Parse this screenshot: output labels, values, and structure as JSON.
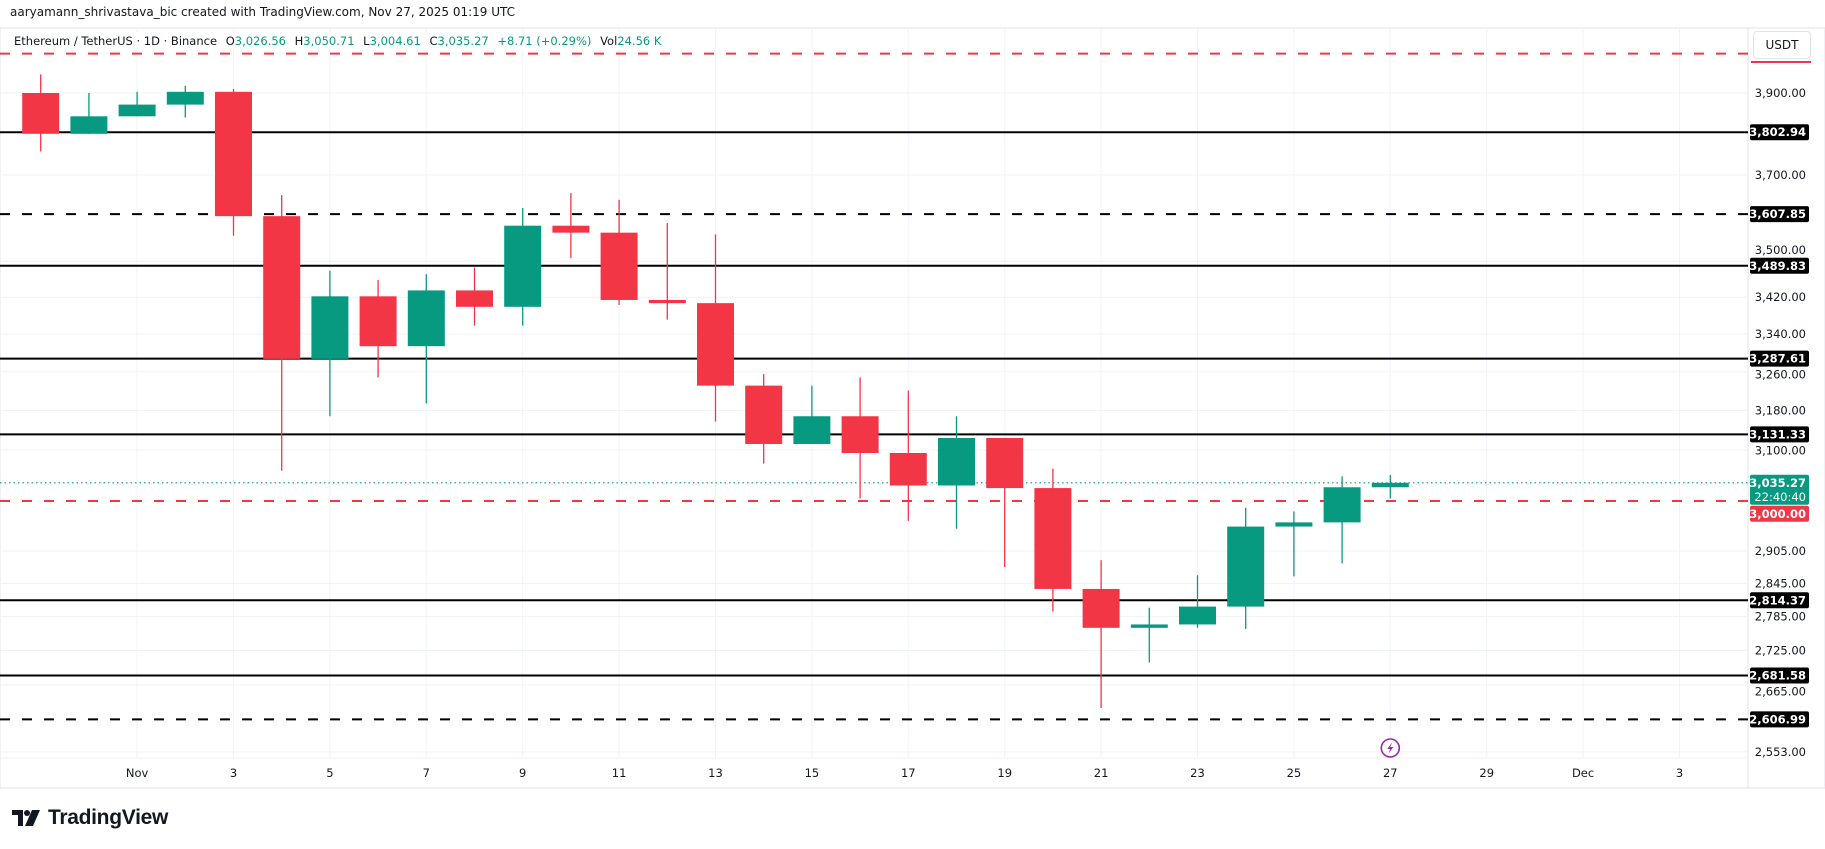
{
  "header": {
    "credit": "aaryamann_shrivastava_bic created with TradingView.com, Nov 27, 2025 01:19 UTC"
  },
  "legend": {
    "symbol": "Ethereum / TetherUS · 1D · Binance",
    "open_label": "O",
    "open": "3,026.56",
    "high_label": "H",
    "high": "3,050.71",
    "low_label": "L",
    "low": "3,004.61",
    "close_label": "C",
    "close": "3,035.27",
    "change": "+8.71 (+0.29%)",
    "vol_label": "Vol",
    "vol": "24.56 K"
  },
  "price_axis": {
    "currency": "USDT"
  },
  "branding": {
    "logo_text": "TradingView"
  },
  "colors": {
    "up": "#089981",
    "down": "#F23645",
    "level": "#000000",
    "accent": "#F23645",
    "event_icon": "#9C27B0"
  },
  "chart_data": {
    "type": "candlestick",
    "title": "",
    "y_scale": "log",
    "ylim": [
      2520,
      4060
    ],
    "grid": true,
    "candles": [
      {
        "date": "2025-10-30",
        "o": 3900,
        "h": 3947,
        "l": 3756,
        "c": 3799
      },
      {
        "date": "2025-10-31",
        "o": 3799,
        "h": 3900,
        "l": 3799,
        "c": 3842
      },
      {
        "date": "2025-11-01",
        "o": 3842,
        "h": 3903,
        "l": 3842,
        "c": 3871
      },
      {
        "date": "2025-11-02",
        "o": 3871,
        "h": 3918,
        "l": 3839,
        "c": 3903
      },
      {
        "date": "2025-11-03",
        "o": 3903,
        "h": 3910,
        "l": 3558,
        "c": 3603
      },
      {
        "date": "2025-11-04",
        "o": 3603,
        "h": 3652,
        "l": 3059,
        "c": 3287
      },
      {
        "date": "2025-11-05",
        "o": 3287,
        "h": 3479,
        "l": 3168,
        "c": 3422
      },
      {
        "date": "2025-11-06",
        "o": 3422,
        "h": 3458,
        "l": 3248,
        "c": 3314
      },
      {
        "date": "2025-11-07",
        "o": 3314,
        "h": 3471,
        "l": 3194,
        "c": 3435
      },
      {
        "date": "2025-11-08",
        "o": 3435,
        "h": 3486,
        "l": 3358,
        "c": 3399
      },
      {
        "date": "2025-11-09",
        "o": 3399,
        "h": 3622,
        "l": 3358,
        "c": 3581
      },
      {
        "date": "2025-11-10",
        "o": 3581,
        "h": 3657,
        "l": 3507,
        "c": 3565
      },
      {
        "date": "2025-11-11",
        "o": 3565,
        "h": 3641,
        "l": 3403,
        "c": 3414
      },
      {
        "date": "2025-11-12",
        "o": 3414,
        "h": 3587,
        "l": 3371,
        "c": 3407
      },
      {
        "date": "2025-11-13",
        "o": 3407,
        "h": 3561,
        "l": 3157,
        "c": 3231
      },
      {
        "date": "2025-11-14",
        "o": 3231,
        "h": 3255,
        "l": 3073,
        "c": 3112
      },
      {
        "date": "2025-11-15",
        "o": 3112,
        "h": 3231,
        "l": 3112,
        "c": 3168
      },
      {
        "date": "2025-11-16",
        "o": 3168,
        "h": 3248,
        "l": 3005,
        "c": 3094
      },
      {
        "date": "2025-11-17",
        "o": 3094,
        "h": 3221,
        "l": 2962,
        "c": 3030
      },
      {
        "date": "2025-11-18",
        "o": 3030,
        "h": 3168,
        "l": 2947,
        "c": 3124
      },
      {
        "date": "2025-11-19",
        "o": 3124,
        "h": 3124,
        "l": 2875,
        "c": 3025
      },
      {
        "date": "2025-11-20",
        "o": 3025,
        "h": 3063,
        "l": 2794,
        "c": 2835
      },
      {
        "date": "2025-11-21",
        "o": 2835,
        "h": 2888,
        "l": 2626,
        "c": 2765
      },
      {
        "date": "2025-11-22",
        "o": 2765,
        "h": 2801,
        "l": 2704,
        "c": 2771
      },
      {
        "date": "2025-11-23",
        "o": 2771,
        "h": 2860,
        "l": 2765,
        "c": 2803
      },
      {
        "date": "2025-11-24",
        "o": 2803,
        "h": 2987,
        "l": 2763,
        "c": 2951
      },
      {
        "date": "2025-11-25",
        "o": 2951,
        "h": 2980,
        "l": 2858,
        "c": 2959
      },
      {
        "date": "2025-11-26",
        "o": 2959,
        "h": 3048,
        "l": 2882,
        "c": 3026.56
      },
      {
        "date": "2025-11-27",
        "o": 3026.56,
        "h": 3050.71,
        "l": 3004.61,
        "c": 3035.27
      }
    ],
    "y_ticks": [
      "3,900.00",
      "3,700.00",
      "3,500.00",
      "3,420.00",
      "3,340.00",
      "3,260.00",
      "3,180.00",
      "3,100.00",
      "2,905.00",
      "2,845.00",
      "2,785.00",
      "2,725.00",
      "2,665.00",
      "2,553.00"
    ],
    "x_ticks": [
      {
        "label": "Nov",
        "date": "2025-11-01"
      },
      {
        "label": "3",
        "date": "2025-11-03"
      },
      {
        "label": "5",
        "date": "2025-11-05"
      },
      {
        "label": "7",
        "date": "2025-11-07"
      },
      {
        "label": "9",
        "date": "2025-11-09"
      },
      {
        "label": "11",
        "date": "2025-11-11"
      },
      {
        "label": "13",
        "date": "2025-11-13"
      },
      {
        "label": "15",
        "date": "2025-11-15"
      },
      {
        "label": "17",
        "date": "2025-11-17"
      },
      {
        "label": "19",
        "date": "2025-11-19"
      },
      {
        "label": "21",
        "date": "2025-11-21"
      },
      {
        "label": "23",
        "date": "2025-11-23"
      },
      {
        "label": "25",
        "date": "2025-11-25"
      },
      {
        "label": "27",
        "date": "2025-11-27"
      },
      {
        "label": "29",
        "date": "2025-11-29"
      },
      {
        "label": "Dec",
        "date": "2025-12-01"
      },
      {
        "label": "3",
        "date": "2025-12-03"
      }
    ],
    "levels": [
      {
        "price": 4000,
        "label": "",
        "style": "dashed",
        "color": "#F23645"
      },
      {
        "price": 3802.94,
        "label": "3,802.94",
        "style": "solid",
        "color": "#000000"
      },
      {
        "price": 3607.85,
        "label": "3,607.85",
        "style": "dashed",
        "color": "#000000"
      },
      {
        "price": 3489.83,
        "label": "3,489.83",
        "style": "solid",
        "color": "#000000"
      },
      {
        "price": 3287.61,
        "label": "3,287.61",
        "style": "solid",
        "color": "#000000"
      },
      {
        "price": 3131.33,
        "label": "3,131.33",
        "style": "solid",
        "color": "#000000"
      },
      {
        "price": 3000,
        "label": "3,000.00",
        "style": "dashed",
        "color": "#F23645"
      },
      {
        "price": 2814.37,
        "label": "2,814.37",
        "style": "solid",
        "color": "#000000"
      },
      {
        "price": 2681.58,
        "label": "2,681.58",
        "style": "solid",
        "color": "#000000"
      },
      {
        "price": 2606.99,
        "label": "2,606.99",
        "style": "dashed",
        "color": "#000000"
      }
    ],
    "last_price": {
      "price": 3035.27,
      "label": "3,035.27",
      "countdown": "22:40:40"
    },
    "event_marker": {
      "date": "2025-11-27",
      "icon": "lightning-icon"
    }
  }
}
